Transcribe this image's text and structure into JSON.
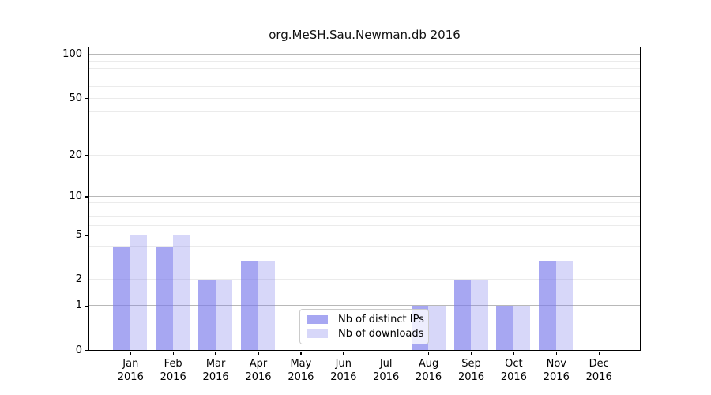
{
  "chart_data": {
    "type": "bar",
    "title": "org.MeSH.Sau.Newman.db 2016",
    "categories": [
      "Jan 2016",
      "Feb 2016",
      "Mar 2016",
      "Apr 2016",
      "May 2016",
      "Jun 2016",
      "Jul 2016",
      "Aug 2016",
      "Sep 2016",
      "Oct 2016",
      "Nov 2016",
      "Dec 2016"
    ],
    "series": [
      {
        "name": "Nb of distinct IPs",
        "color": "rgba(122,122,235,0.66)",
        "values": [
          4,
          4,
          2,
          3,
          0,
          0,
          0,
          1,
          2,
          1,
          3,
          0
        ]
      },
      {
        "name": "Nb of downloads",
        "color": "rgba(122,122,235,0.30)",
        "values": [
          5,
          5,
          2,
          3,
          0,
          0,
          0,
          1,
          2,
          1,
          3,
          0
        ]
      }
    ],
    "yscale": "log1p",
    "ylim": [
      0,
      112.3
    ],
    "yticks": [
      0,
      1,
      2,
      5,
      10,
      20,
      50,
      100
    ],
    "major_gridlines": [
      1,
      10,
      100
    ],
    "minor_gridlines": [
      2,
      3,
      4,
      5,
      6,
      7,
      8,
      9,
      20,
      30,
      40,
      50,
      60,
      70,
      80,
      90
    ],
    "grid_major_color": "#b8b8b8",
    "grid_minor_color": "#ebebeb",
    "axis_color": "#000000",
    "legend_position": "bottom-center"
  }
}
